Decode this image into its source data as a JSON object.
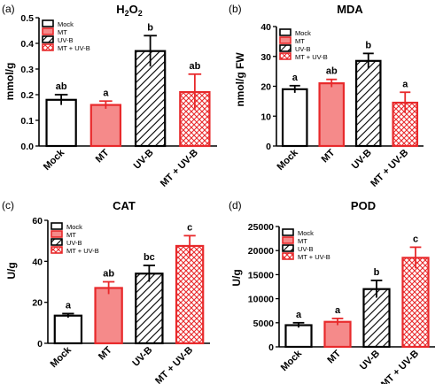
{
  "chart_data": [
    {
      "panel_label": "(a)",
      "type": "bar",
      "title_base": "H",
      "title_sub1": "2",
      "title_mid": "O",
      "title_sub2": "2",
      "ylabel": "mmol/g",
      "xlabel": "",
      "ylim": [
        0,
        0.5
      ],
      "yticks": [
        "0.0",
        "0.1",
        "0.2",
        "0.3",
        "0.4",
        "0.5"
      ],
      "categories": [
        "Mock",
        "MT",
        "UV-B",
        "MT + UV-B"
      ],
      "values": [
        0.18,
        0.16,
        0.37,
        0.21
      ],
      "errors": [
        0.02,
        0.015,
        0.06,
        0.07
      ],
      "letters": [
        "ab",
        "a",
        "b",
        "ab"
      ],
      "legend": [
        "Mock",
        "MT",
        "UV-B",
        "MT + UV-B"
      ],
      "legend_position": "top-left",
      "grid": false
    },
    {
      "panel_label": "(b)",
      "type": "bar",
      "title": "MDA",
      "ylabel": "nmol/g FW",
      "xlabel": "",
      "ylim": [
        0,
        40
      ],
      "yticks": [
        "0",
        "10",
        "20",
        "30",
        "40"
      ],
      "categories": [
        "Mock",
        "MT",
        "UV-B",
        "MT + UV-B"
      ],
      "values": [
        19,
        21,
        28.5,
        14.5
      ],
      "errors": [
        1.2,
        1.3,
        2.5,
        3.5
      ],
      "letters": [
        "a",
        "ab",
        "b",
        "a"
      ],
      "legend": [
        "Mock",
        "MT",
        "UV-B",
        "MT + UV-B"
      ],
      "legend_position": "top-left",
      "grid": false
    },
    {
      "panel_label": "(c)",
      "type": "bar",
      "title": "CAT",
      "ylabel": "U/g",
      "xlabel": "",
      "ylim": [
        0,
        60
      ],
      "yticks": [
        "0",
        "20",
        "40",
        "60"
      ],
      "categories": [
        "Mock",
        "MT",
        "UV-B",
        "MT + UV-B"
      ],
      "values": [
        13.5,
        27,
        34,
        47.5
      ],
      "errors": [
        1,
        3,
        4,
        5
      ],
      "letters": [
        "a",
        "ab",
        "bc",
        "c"
      ],
      "legend": [
        "Mock",
        "MT",
        "UV-B",
        "MT + UV-B"
      ],
      "legend_position": "top-left",
      "grid": false
    },
    {
      "panel_label": "(d)",
      "type": "bar",
      "title": "POD",
      "ylabel": "U/g",
      "xlabel": "",
      "ylim": [
        0,
        25000
      ],
      "yticks": [
        "0",
        "5000",
        "10000",
        "15000",
        "20000",
        "25000"
      ],
      "categories": [
        "Mock",
        "MT",
        "UV-B",
        "MT + UV-B"
      ],
      "values": [
        4500,
        5200,
        12000,
        18500
      ],
      "errors": [
        500,
        700,
        1800,
        2200
      ],
      "letters": [
        "a",
        "a",
        "b",
        "c"
      ],
      "legend": [
        "Mock",
        "MT",
        "UV-B",
        "MT + UV-B"
      ],
      "legend_position": "top-left",
      "grid": false
    }
  ],
  "colors": {
    "axis": "#000000",
    "red": "#e8292b",
    "light_red": "#f58a8a",
    "white": "#ffffff"
  },
  "bar_styles": [
    "white-fill-black",
    "light-red-fill-red",
    "black-diagonal-hatch",
    "red-crosshatch"
  ]
}
